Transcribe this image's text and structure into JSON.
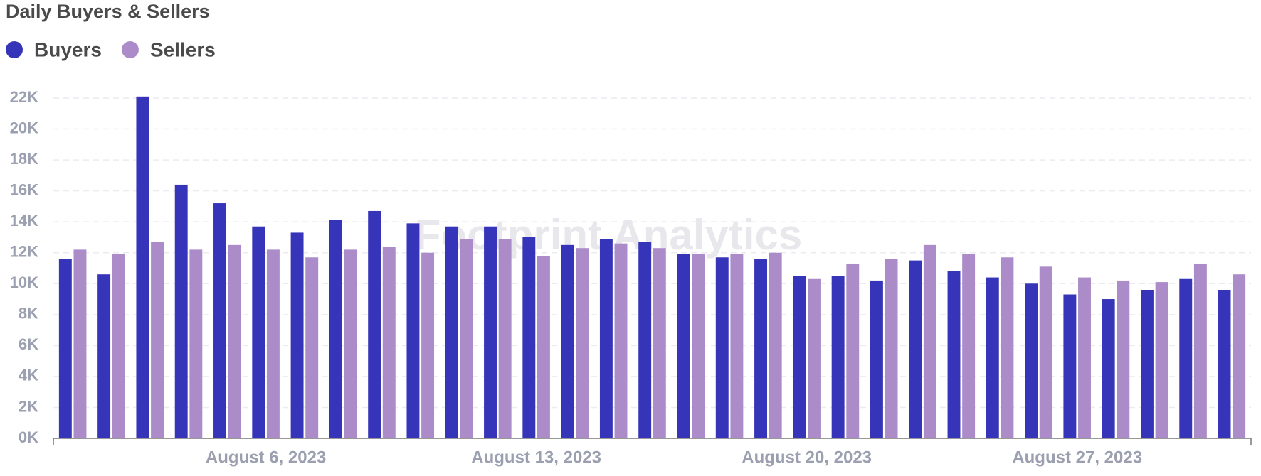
{
  "chart_data": {
    "type": "bar",
    "title": "Daily Buyers & Sellers",
    "watermark": "Footprint Analytics",
    "categories": [
      null,
      null,
      null,
      null,
      null,
      "August 6, 2023",
      null,
      null,
      null,
      null,
      null,
      null,
      "August 13, 2023",
      null,
      null,
      null,
      null,
      null,
      null,
      "August 20, 2023",
      null,
      null,
      null,
      null,
      null,
      null,
      "August 27, 2023",
      null,
      null,
      null,
      null
    ],
    "series": [
      {
        "name": "Buyers",
        "color": "#3634b8",
        "values": [
          11600,
          10600,
          22100,
          16400,
          15200,
          13700,
          13300,
          14100,
          14700,
          13900,
          13700,
          13700,
          13000,
          12500,
          12900,
          12700,
          11900,
          11700,
          11600,
          10500,
          10500,
          10200,
          11500,
          10800,
          10400,
          10000,
          9300,
          9000,
          9600,
          10300,
          9600
        ]
      },
      {
        "name": "Sellers",
        "color": "#ab8cc8",
        "values": [
          12200,
          11900,
          12700,
          12200,
          12500,
          12200,
          11700,
          12200,
          12400,
          12000,
          12900,
          12900,
          11800,
          12300,
          12600,
          12300,
          11900,
          11900,
          12000,
          10300,
          11300,
          11600,
          12500,
          11900,
          11700,
          11100,
          10400,
          10200,
          10100,
          11300,
          10600
        ]
      }
    ],
    "ylim": [
      0,
      22000
    ],
    "yticks": [
      {
        "value": 0,
        "label": "0K"
      },
      {
        "value": 2000,
        "label": "2K"
      },
      {
        "value": 4000,
        "label": "4K"
      },
      {
        "value": 6000,
        "label": "6K"
      },
      {
        "value": 8000,
        "label": "8K"
      },
      {
        "value": 10000,
        "label": "10K"
      },
      {
        "value": 12000,
        "label": "12K"
      },
      {
        "value": 14000,
        "label": "14K"
      },
      {
        "value": 16000,
        "label": "16K"
      },
      {
        "value": 18000,
        "label": "18K"
      },
      {
        "value": 20000,
        "label": "20K"
      },
      {
        "value": 22000,
        "label": "22K"
      }
    ],
    "grid": true
  }
}
